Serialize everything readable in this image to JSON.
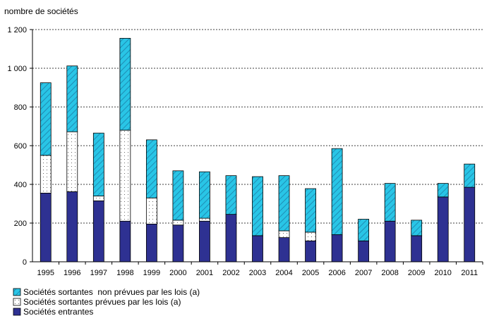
{
  "chart_data": {
    "type": "bar",
    "stacked": true,
    "ylabel": "nombre de sociétés",
    "ylim": [
      0,
      1200
    ],
    "yticks": [
      "0",
      "200",
      "400",
      "600",
      "800",
      "1 000",
      "1 200"
    ],
    "ytick_values": [
      0,
      200,
      400,
      600,
      800,
      1000,
      1200
    ],
    "grid": "horizontal dotted",
    "legend_position": "bottom-left",
    "categories": [
      "1995",
      "1996",
      "1997",
      "1998",
      "1999",
      "2000",
      "2001",
      "2002",
      "2003",
      "2004",
      "2005",
      "2006",
      "2007",
      "2008",
      "2009",
      "2010",
      "2011"
    ],
    "series": [
      {
        "name": "Sociétés entrantes",
        "color": "#2e3192",
        "pattern": "solid",
        "values": [
          355,
          362,
          315,
          210,
          195,
          190,
          210,
          245,
          135,
          125,
          108,
          140,
          108,
          210,
          135,
          335,
          385
        ]
      },
      {
        "name": "Sociétés sortantes prévues par les lois (a)",
        "color": "#ffffff",
        "pattern": "dots",
        "values": [
          195,
          310,
          25,
          470,
          135,
          25,
          15,
          0,
          0,
          35,
          45,
          0,
          0,
          0,
          0,
          0,
          0
        ]
      },
      {
        "name": "Sociétés sortantes  non prévues par les lois (a)",
        "color": "#29c5e6",
        "pattern": "hatch",
        "values": [
          375,
          340,
          325,
          475,
          300,
          255,
          240,
          200,
          305,
          285,
          225,
          445,
          112,
          195,
          80,
          70,
          120
        ]
      }
    ]
  }
}
